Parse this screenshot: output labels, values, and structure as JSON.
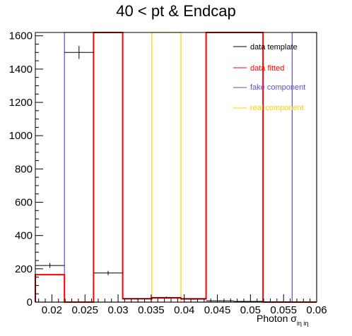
{
  "chart_data": {
    "type": "histogram",
    "title": "40 < pt & Endcap",
    "xlabel": "Photon σ_{iη iη}",
    "xlabel_main": "Photon σ",
    "xlabel_sub": "iη iη",
    "ylabel": "",
    "xlim": [
      0.0175,
      0.06
    ],
    "ylim": [
      0,
      1620
    ],
    "x_ticks": [
      {
        "value": 0.02,
        "label": "0.02"
      },
      {
        "value": 0.025,
        "label": "0.025"
      },
      {
        "value": 0.03,
        "label": "0.03"
      },
      {
        "value": 0.035,
        "label": "0.035"
      },
      {
        "value": 0.04,
        "label": "0.04"
      },
      {
        "value": 0.045,
        "label": "0.045"
      },
      {
        "value": 0.05,
        "label": "0.05"
      },
      {
        "value": 0.055,
        "label": "0.055"
      },
      {
        "value": 0.06,
        "label": "0.06"
      }
    ],
    "y_ticks": [
      {
        "value": 0,
        "label": "0"
      },
      {
        "value": 200,
        "label": "200"
      },
      {
        "value": 400,
        "label": "400"
      },
      {
        "value": 600,
        "label": "600"
      },
      {
        "value": 800,
        "label": "800"
      },
      {
        "value": 1000,
        "label": "1000"
      },
      {
        "value": 1200,
        "label": "1200"
      },
      {
        "value": 1400,
        "label": "1400"
      },
      {
        "value": 1600,
        "label": "1600"
      }
    ],
    "series": [
      {
        "name": "data template",
        "color": "#000000",
        "style": "points",
        "points": [
          {
            "x0": 0.0175,
            "x1": 0.0219,
            "y": 220,
            "err": 15
          },
          {
            "x0": 0.0219,
            "x1": 0.0263,
            "y": 1500,
            "err": 39
          },
          {
            "x0": 0.0263,
            "x1": 0.0307,
            "y": 175,
            "err": 13
          },
          {
            "x0": 0.0307,
            "x1": 0.0351,
            "y": 20,
            "err": 4
          },
          {
            "x0": 0.0351,
            "x1": 0.0395,
            "y": 28,
            "err": 5
          },
          {
            "x0": 0.0395,
            "x1": 0.0433,
            "y": 18,
            "err": 4
          },
          {
            "x0": 0.0433,
            "x1": 0.0475,
            "y": 8,
            "err": 3
          },
          {
            "x0": 0.0475,
            "x1": 0.0519,
            "y": 4,
            "err": 2
          },
          {
            "x0": 0.0519,
            "x1": 0.0563,
            "y": 2,
            "err": 1
          },
          {
            "x0": 0.0563,
            "x1": 0.06,
            "y": 1,
            "err": 1
          }
        ]
      },
      {
        "name": "data fitted",
        "color": "#ff0000",
        "style": "step",
        "edges": [
          0.0175,
          0.0219,
          0.0263,
          0.0307,
          0.0351,
          0.0395,
          0.0433,
          0.0475,
          0.0519,
          0.0563,
          0.06
        ],
        "values": [
          165,
          0,
          1620,
          20,
          25,
          20,
          1620,
          1620,
          0,
          0
        ]
      },
      {
        "name": "fake component",
        "color": "#5a4fd6",
        "style": "step",
        "edges": [
          0.0175,
          0.0219,
          0.0263,
          0.0307,
          0.0351,
          0.0395,
          0.0433,
          0.0475,
          0.0519,
          0.0563,
          0.06
        ],
        "values": [
          0,
          1620,
          0,
          0,
          0,
          0,
          0,
          0,
          0,
          1620
        ]
      },
      {
        "name": "real component",
        "color": "#ffcc00",
        "style": "step",
        "edges": [
          0.0175,
          0.0219,
          0.0263,
          0.0307,
          0.0351,
          0.0395,
          0.0433,
          0.0475,
          0.0519,
          0.0563,
          0.06
        ],
        "values": [
          0,
          0,
          0,
          0,
          1620,
          0,
          0,
          0,
          0,
          0
        ]
      }
    ],
    "legend": {
      "placement": "top-right",
      "entries": [
        {
          "label": "data template",
          "color": "#000000"
        },
        {
          "label": "data fitted",
          "color": "#ff0000"
        },
        {
          "label": "fake component",
          "color": "#5a4fd6"
        },
        {
          "label": "real component",
          "color": "#ffcc00"
        }
      ]
    }
  }
}
